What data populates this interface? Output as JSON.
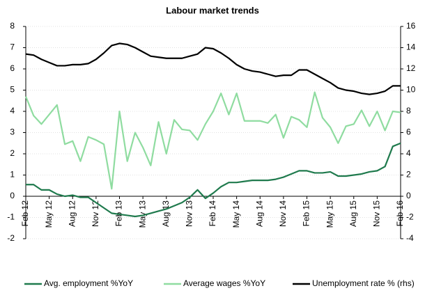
{
  "chart_data": {
    "type": "line",
    "title": "Labour market trends",
    "categories": [
      "Feb 12",
      null,
      null,
      "May 12",
      null,
      null,
      "Aug 12",
      null,
      null,
      "Nov 12",
      null,
      null,
      "Feb 13",
      null,
      null,
      "May 13",
      null,
      null,
      "Aug 13",
      null,
      null,
      "Nov 13",
      null,
      null,
      "Feb 14",
      null,
      null,
      "May 14",
      null,
      null,
      "Aug 14",
      null,
      null,
      "Nov 14",
      null,
      null,
      "Feb 15",
      null,
      null,
      "May 15",
      null,
      null,
      "Aug 15",
      null,
      null,
      "Nov 15",
      null,
      null,
      "Feb 16"
    ],
    "series": [
      {
        "name": "Avg. employment %YoY",
        "color": "#1f7a4d",
        "values": [
          0.55,
          0.55,
          0.3,
          0.3,
          0.1,
          0.0,
          0.05,
          -0.05,
          -0.05,
          -0.3,
          -0.55,
          -0.8,
          -0.85,
          -0.9,
          -0.95,
          -0.9,
          -0.8,
          -0.7,
          -0.6,
          -0.45,
          -0.3,
          -0.05,
          0.3,
          -0.1,
          0.15,
          0.45,
          0.65,
          0.65,
          0.7,
          0.75,
          0.75,
          0.75,
          0.8,
          0.9,
          1.05,
          1.2,
          1.2,
          1.1,
          1.1,
          1.15,
          0.95,
          0.95,
          1.0,
          1.05,
          1.15,
          1.2,
          1.4,
          2.35,
          2.5
        ]
      },
      {
        "name": "Average wages %YoY",
        "color": "#8fdca0",
        "values": [
          4.7,
          3.8,
          3.4,
          3.85,
          4.3,
          2.45,
          2.6,
          1.65,
          2.8,
          2.65,
          2.45,
          0.35,
          4.0,
          1.65,
          3.0,
          2.3,
          1.45,
          3.5,
          2.0,
          3.6,
          3.15,
          3.1,
          2.65,
          3.4,
          4.0,
          4.85,
          3.85,
          4.85,
          3.55,
          3.55,
          3.55,
          3.45,
          3.85,
          2.75,
          3.75,
          3.6,
          3.25,
          4.9,
          3.7,
          3.25,
          2.5,
          3.3,
          3.4,
          4.05,
          3.3,
          4.0,
          3.1,
          4.0,
          3.95
        ]
      },
      {
        "name": "Unemployment rate % (rhs)",
        "color": "#000000",
        "axis": "y2",
        "values": [
          13.4,
          13.3,
          12.9,
          12.6,
          12.3,
          12.3,
          12.4,
          12.4,
          12.5,
          12.9,
          13.5,
          14.2,
          14.4,
          14.3,
          14.0,
          13.6,
          13.2,
          13.1,
          13.0,
          13.0,
          13.0,
          13.2,
          13.4,
          14.0,
          13.9,
          13.5,
          13.0,
          12.4,
          12.0,
          11.8,
          11.7,
          11.5,
          11.3,
          11.4,
          11.4,
          11.9,
          11.9,
          11.5,
          11.1,
          10.7,
          10.2,
          10.0,
          9.9,
          9.7,
          9.6,
          9.7,
          9.9,
          10.4,
          10.4
        ]
      }
    ],
    "ylim": [
      -2,
      8
    ],
    "yticks": [
      -2,
      -1,
      0,
      1,
      2,
      3,
      4,
      5,
      6,
      7,
      8
    ],
    "y2lim": [
      -4,
      16
    ],
    "y2ticks": [
      -4,
      -2,
      0,
      2,
      4,
      6,
      8,
      10,
      12,
      14,
      16
    ],
    "grid": true,
    "legend": "bottom"
  }
}
